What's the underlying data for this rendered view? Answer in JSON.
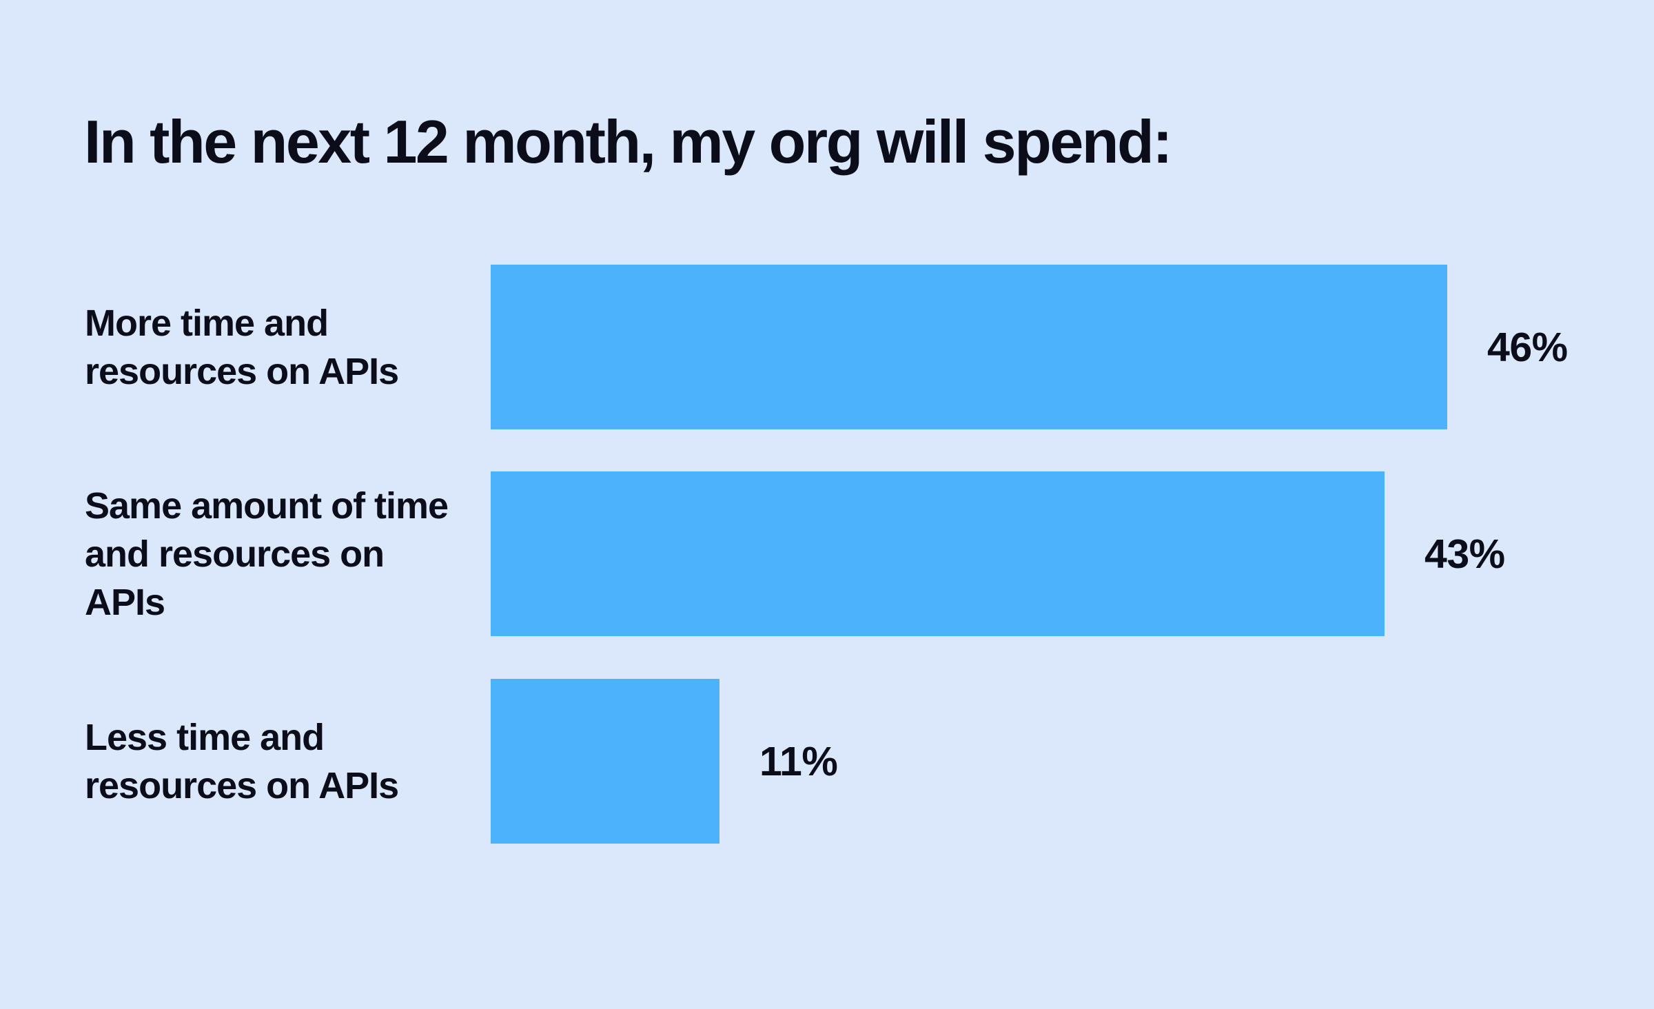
{
  "page": {
    "background_color": "#dbe7fb",
    "text_color": "#0b0e1a"
  },
  "chart_data": {
    "type": "bar",
    "orientation": "horizontal",
    "title": "In the next 12 month, my org will spend:",
    "categories": [
      "More time and resources on APIs",
      "Same amount of time and resources on APIs",
      "Less time and resources on APIs"
    ],
    "values": [
      46,
      43,
      11
    ],
    "value_labels": [
      "46%",
      "43%",
      "11%"
    ],
    "unit": "%",
    "xlim": [
      0,
      46
    ],
    "grid": false,
    "legend": false,
    "bar_color": "#4db2fc",
    "rows": [
      {
        "lines": [
          "More time and",
          "resources on APIs"
        ],
        "value": 46,
        "value_label": "46%"
      },
      {
        "lines": [
          "Same amount of time",
          "and resources on",
          "APIs"
        ],
        "value": 43,
        "value_label": "43%"
      },
      {
        "lines": [
          "Less time and",
          "resources on APIs"
        ],
        "value": 11,
        "value_label": "11%"
      }
    ]
  }
}
